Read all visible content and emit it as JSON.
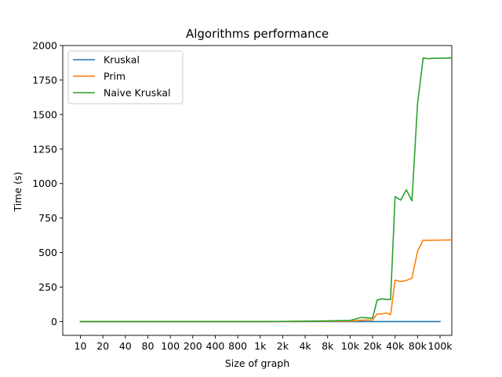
{
  "chart_data": {
    "type": "line",
    "title": "Algorithms performance",
    "xlabel": "Size of graph",
    "ylabel": "Time (s)",
    "ylim": [
      -100,
      2000
    ],
    "yticks": [
      0,
      250,
      500,
      750,
      1000,
      1250,
      1500,
      1750,
      2000
    ],
    "xtick_labels": [
      "10",
      "20",
      "40",
      "80",
      "100",
      "200",
      "400",
      "800",
      "1k",
      "2k",
      "4k",
      "8k",
      "10k",
      "20k",
      "40k",
      "80k",
      "100k"
    ],
    "x_scale": "categorical, evenly spaced tick labels",
    "grid": false,
    "legend": "top-left",
    "series": [
      {
        "name": "Kruskal",
        "color": "#1f77b4",
        "x": [
          "10",
          "20",
          "40",
          "80",
          "100",
          "200",
          "400",
          "800",
          "1k",
          "2k",
          "4k",
          "8k",
          "10k",
          "20k",
          "40k",
          "80k",
          "100k"
        ],
        "values": [
          0,
          0,
          0,
          0,
          0,
          0,
          0,
          0,
          0,
          0,
          0,
          0,
          0,
          0,
          0,
          0,
          0
        ]
      },
      {
        "name": "Prim",
        "color": "#ff7f0e",
        "x": [
          "10",
          "20",
          "40",
          "80",
          "100",
          "200",
          "400",
          "800",
          "1k",
          "2k",
          "4k",
          "8k",
          "10k",
          "10k",
          "20k",
          "20k",
          "20k",
          "20k",
          "20k",
          "40k",
          "40k",
          "40k",
          "40k",
          "80k",
          "80k",
          "80k",
          "80k",
          "100k",
          "100k"
        ],
        "values": [
          0,
          0,
          0,
          0,
          0,
          0,
          0,
          0,
          0,
          0,
          1,
          2,
          3,
          10,
          12,
          55,
          55,
          62,
          50,
          300,
          290,
          298,
          315,
          510,
          590,
          588,
          590,
          590,
          592
        ]
      },
      {
        "name": "Naive Kruskal",
        "color": "#2ca02c",
        "x": [
          "10",
          "20",
          "40",
          "80",
          "100",
          "200",
          "400",
          "800",
          "1k",
          "2k",
          "4k",
          "8k",
          "10k",
          "10k",
          "20k",
          "20k",
          "20k",
          "20k",
          "20k",
          "40k",
          "40k",
          "40k",
          "40k",
          "80k",
          "80k",
          "80k",
          "80k",
          "100k",
          "100k"
        ],
        "values": [
          0,
          0,
          0,
          0,
          0,
          0,
          0,
          0,
          0,
          1,
          3,
          5,
          8,
          30,
          25,
          155,
          165,
          160,
          160,
          905,
          880,
          955,
          875,
          1580,
          1910,
          1905,
          1908,
          1908,
          1910
        ]
      }
    ]
  }
}
